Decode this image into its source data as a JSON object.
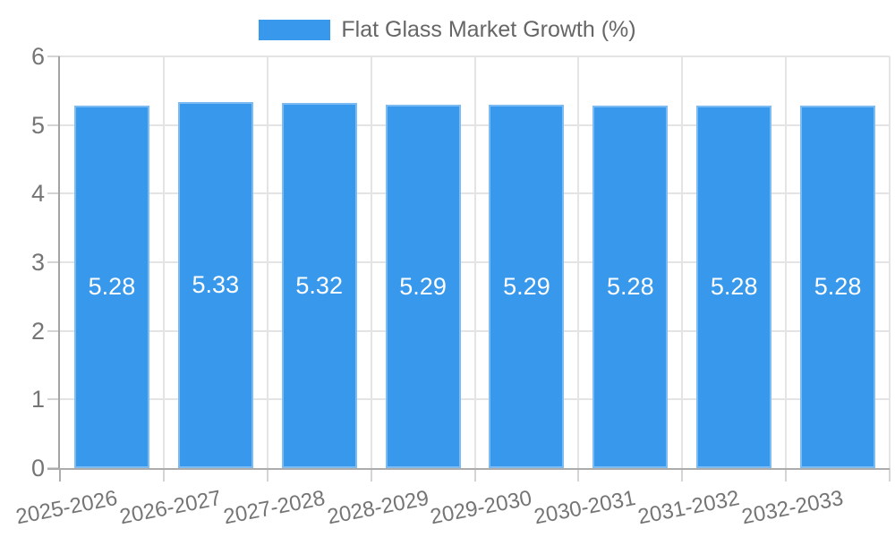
{
  "chart_data": {
    "type": "bar",
    "title": "Flat Glass Market Growth (%)",
    "legend": {
      "position": "top",
      "label": "Flat Glass Market Growth (%)"
    },
    "categories": [
      "2025-2026",
      "2026-2027",
      "2027-2028",
      "2028-2029",
      "2029-2030",
      "2030-2031",
      "2031-2032",
      "2032-2033"
    ],
    "series": [
      {
        "name": "Flat Glass Market Growth (%)",
        "values": [
          5.28,
          5.33,
          5.32,
          5.29,
          5.29,
          5.28,
          5.28,
          5.28
        ]
      }
    ],
    "value_labels": [
      "5.28",
      "5.33",
      "5.32",
      "5.29",
      "5.29",
      "5.28",
      "5.28",
      "5.28"
    ],
    "xlabel": "",
    "ylabel": "",
    "ylim": [
      0,
      6
    ],
    "yticks": [
      "0",
      "1",
      "2",
      "3",
      "4",
      "5",
      "6"
    ],
    "grid": true,
    "colors": {
      "bar": "#3899EC",
      "bar_value_text": "#FFFFFF",
      "gridline": "#E4E4E4",
      "axis_line": "#ACACAC",
      "tick_text": "#757575",
      "legend_text": "#666666",
      "background": "#FFFFFF"
    }
  }
}
